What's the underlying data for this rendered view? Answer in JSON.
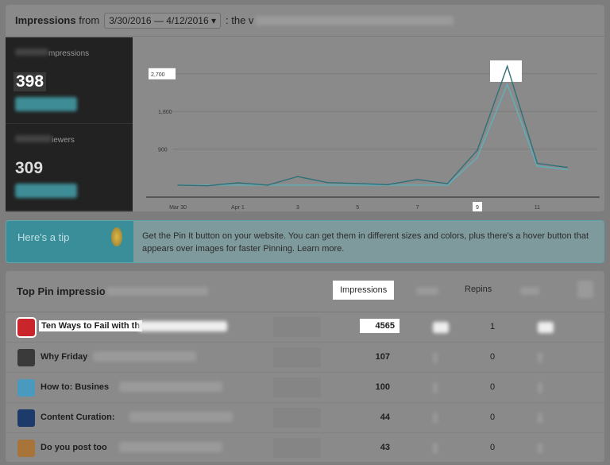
{
  "header": {
    "title": "Impressions",
    "from": "from",
    "date_range": "3/30/2016 — 4/12/2016 ▾",
    "suffix": ": the v"
  },
  "stats": [
    {
      "label": "mpressions",
      "value": "398"
    },
    {
      "label": "iewers",
      "value": "309"
    }
  ],
  "chart_data": {
    "type": "line",
    "x": [
      "Mar 30",
      "Mar 31",
      "Apr 1",
      "Apr 2",
      "Apr 3",
      "Apr 4",
      "Apr 5",
      "Apr 6",
      "Apr 7",
      "Apr 8",
      "Apr 9",
      "Apr 10",
      "Apr 11",
      "Apr 12"
    ],
    "xticks": [
      "Mar 30",
      "Apr 1",
      "3",
      "5",
      "7",
      "9",
      "11"
    ],
    "yticks": [
      "900",
      "1,800",
      "2,700"
    ],
    "ylim": [
      0,
      3000
    ],
    "grid": true,
    "series": [
      {
        "values": [
          40,
          25,
          95,
          40,
          245,
          100,
          80,
          50,
          175,
          75,
          875,
          2880,
          560,
          465
        ],
        "color": "#2f6f78"
      },
      {
        "values": [
          40,
          40,
          40,
          40,
          40,
          40,
          40,
          40,
          40,
          40,
          700,
          2450,
          495,
          410
        ],
        "color": "#5fb0bb"
      }
    ]
  },
  "tip": {
    "label": "Here's a tip",
    "text": "Get the Pin It button on your website. You can get them in different sizes and colors, plus there's a hover button that appears over images for faster Pinning. Learn more."
  },
  "pins": {
    "title": "Top Pin impressio",
    "columns": {
      "impressions": "Impressions",
      "repins": "Repins"
    },
    "rows": [
      {
        "title": "Ten Ways to Fail with th",
        "impressions": "4565",
        "repins": "1",
        "color": "#c8262b"
      },
      {
        "title": "Why Friday",
        "impressions": "107",
        "repins": "0",
        "color": "#3a3a3a"
      },
      {
        "title": "How to: Busines",
        "impressions": "100",
        "repins": "0",
        "color": "#4a9ac0"
      },
      {
        "title": "Content Curation:",
        "impressions": "44",
        "repins": "0",
        "color": "#1c3a6a"
      },
      {
        "title": "Do you post too",
        "impressions": "43",
        "repins": "0",
        "color": "#a8743a"
      }
    ]
  }
}
